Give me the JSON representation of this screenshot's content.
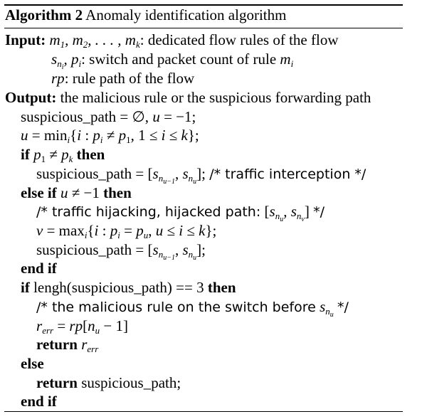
{
  "caption": {
    "label": "Algorithm 2",
    "title": "Anomaly identification algorithm"
  },
  "input": {
    "keyword": "Input:",
    "lines": [
      {
        "math": "m1, m2, . . . , mk",
        "text": ": dedicated flow rules of the flow"
      },
      {
        "math": "sni, pi",
        "text": ": switch and packet count of rule ",
        "math2": "mi"
      },
      {
        "math": "rp",
        "text": ": rule path of the flow"
      }
    ]
  },
  "output": {
    "keyword": "Output:",
    "text": "the malicious rule or the suspicious forwarding path"
  },
  "code": {
    "kw_if": "if",
    "kw_then": "then",
    "kw_else_if": "else if",
    "kw_end_if": "end if",
    "kw_return": "return",
    "kw_else": "else",
    "ident_suspicious_path": "suspicious_path",
    "comment_interception": "/* traffic interception */",
    "comment_hijacking": "/* traffic hijacking, hijacked path:",
    "comment_end": "*/",
    "lengh_call": "lengh(suspicious_path) == 3",
    "comment_malicious": "/* the malicious rule on the switch before",
    "assign_rerr": "= rp[nu − 1]",
    "return_value": "suspicious_path;"
  }
}
